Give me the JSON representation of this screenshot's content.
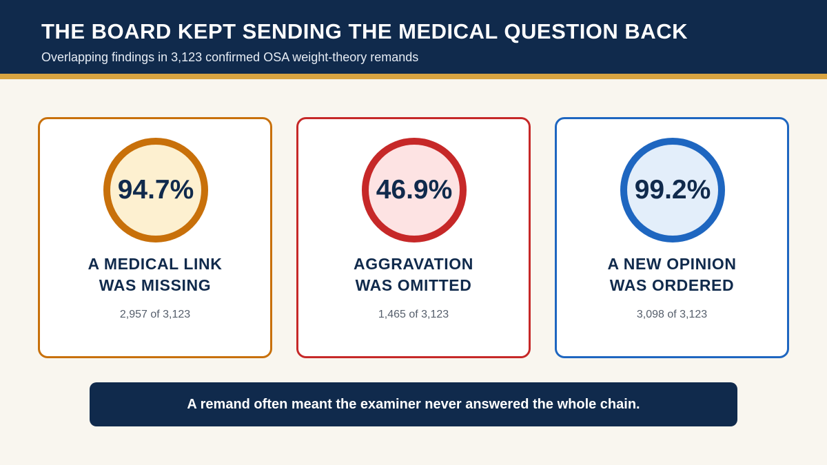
{
  "header": {
    "title": "THE BOARD KEPT SENDING THE MEDICAL QUESTION BACK",
    "subtitle": "Overlapping findings in 3,123 confirmed OSA weight-theory remands"
  },
  "cards": [
    {
      "percent": "94.7%",
      "label": [
        "A MEDICAL LINK",
        "WAS MISSING"
      ],
      "count": "2,957 of 3,123"
    },
    {
      "percent": "46.9%",
      "label": [
        "AGGRAVATION",
        "WAS OMITTED"
      ],
      "count": "1,465 of 3,123"
    },
    {
      "percent": "99.2%",
      "label": [
        "A NEW OPINION",
        "WAS ORDERED"
      ],
      "count": "3,098 of 3,123"
    }
  ],
  "footer": {
    "text": "A remand often meant the examiner never answered the whole chain."
  }
}
